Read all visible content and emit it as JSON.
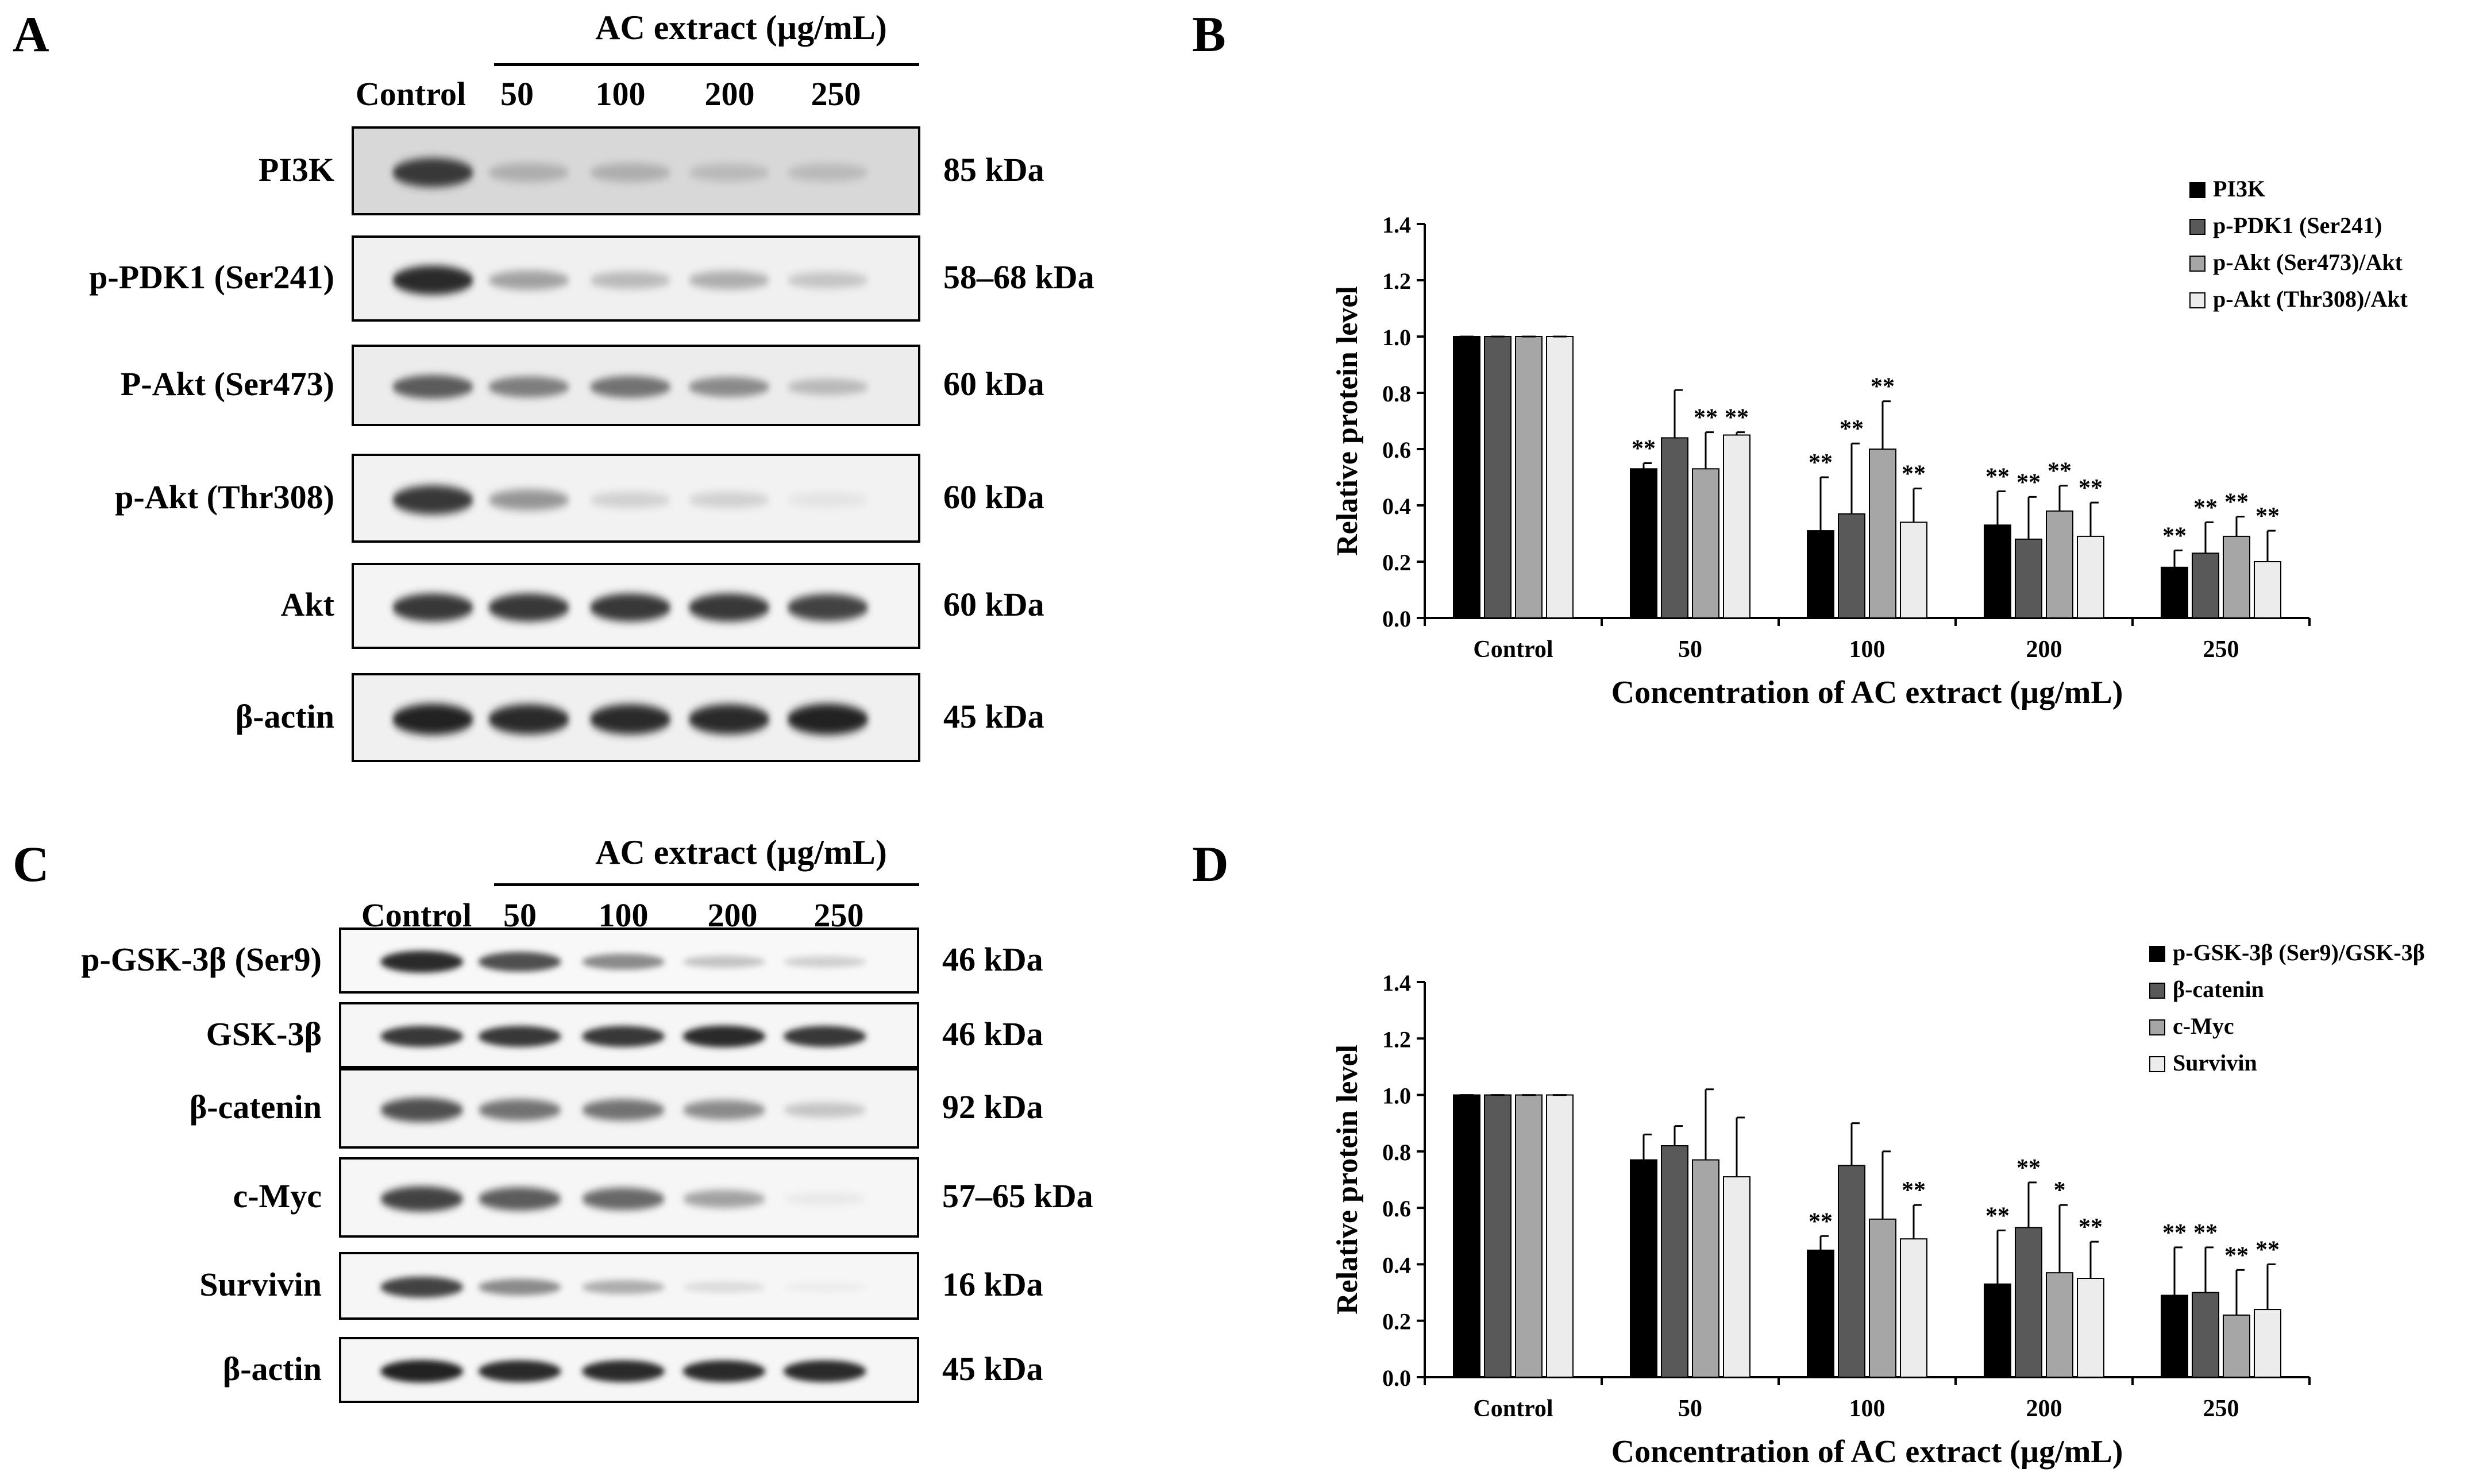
{
  "panel_letters": {
    "a": "A",
    "b": "B",
    "c": "C",
    "d": "D"
  },
  "blot_a": {
    "extract_title": "AC extract (µg/mL)",
    "lanes": [
      "Control",
      "50",
      "100",
      "200",
      "250"
    ],
    "rows": [
      {
        "label": "PI3K",
        "kda": "85 kDa",
        "band": [
          0.85,
          0.35,
          0.35,
          0.3,
          0.3
        ],
        "bg": "#d8d8d8"
      },
      {
        "label": "p-PDK1 (Ser241)",
        "kda": "58–68 kDa",
        "band": [
          0.9,
          0.4,
          0.3,
          0.35,
          0.25
        ],
        "bg": "#f0f0f0"
      },
      {
        "label": "P-Akt (Ser473)",
        "kda": "60 kDa",
        "band": [
          0.7,
          0.55,
          0.6,
          0.5,
          0.3
        ],
        "bg": "#ececec"
      },
      {
        "label": "p-Akt (Thr308)",
        "kda": "60 kDa",
        "band": [
          0.85,
          0.45,
          0.2,
          0.2,
          0.12
        ],
        "bg": "#f2f2f2"
      },
      {
        "label": "Akt",
        "kda": "60 kDa",
        "band": [
          0.85,
          0.85,
          0.85,
          0.85,
          0.8
        ],
        "bg": "#f4f4f4"
      },
      {
        "label": "β-actin",
        "kda": "45 kDa",
        "band": [
          0.95,
          0.9,
          0.9,
          0.9,
          0.95
        ],
        "bg": "#f0f0f0"
      }
    ]
  },
  "blot_c": {
    "extract_title": "AC extract (µg/mL)",
    "lanes": [
      "Control",
      "50",
      "100",
      "200",
      "250"
    ],
    "rows": [
      {
        "label": "p-GSK-3β (Ser9)",
        "kda": "46 kDa",
        "band": [
          0.9,
          0.75,
          0.5,
          0.25,
          0.2
        ],
        "bg": "#f8f8f8"
      },
      {
        "label": "GSK-3β",
        "kda": "46 kDa",
        "band": [
          0.85,
          0.85,
          0.85,
          0.9,
          0.85
        ],
        "bg": "#f6f6f6"
      },
      {
        "label": "β-catenin",
        "kda": "92 kDa",
        "band": [
          0.75,
          0.6,
          0.6,
          0.5,
          0.25
        ],
        "bg": "#f4f4f4"
      },
      {
        "label": "c-Myc",
        "kda": "57–65 kDa",
        "band": [
          0.8,
          0.7,
          0.65,
          0.4,
          0.1
        ],
        "bg": "#f6f6f6"
      },
      {
        "label": "Survivin",
        "kda": "16 kDa",
        "band": [
          0.8,
          0.5,
          0.35,
          0.15,
          0.08
        ],
        "bg": "#f6f6f6"
      },
      {
        "label": "β-actin",
        "kda": "45 kDa",
        "band": [
          0.95,
          0.9,
          0.9,
          0.9,
          0.9
        ],
        "bg": "#f6f6f6"
      }
    ]
  },
  "chart_data": [
    {
      "type": "bar",
      "panel": "B",
      "ylabel": "Relative protein level",
      "xlabel": "Concentration of AC extract  (µg/mL)",
      "categories": [
        "Control",
        "50",
        "100",
        "200",
        "250"
      ],
      "ylim": [
        0,
        1.4
      ],
      "yticks": [
        "0.0",
        "0.2",
        "0.4",
        "0.6",
        "0.8",
        "1.0",
        "1.2",
        "1.4"
      ],
      "legend_position": "top-right",
      "colors": [
        "#000000",
        "#595959",
        "#a6a6a6",
        "#ececec"
      ],
      "series": [
        {
          "name": "PI3K",
          "values": [
            1.0,
            0.53,
            0.31,
            0.33,
            0.18
          ],
          "errors": [
            0,
            0.02,
            0.19,
            0.12,
            0.06
          ],
          "sig": [
            "",
            "**",
            "**",
            "**",
            "**"
          ]
        },
        {
          "name": "p-PDK1 (Ser241)",
          "values": [
            1.0,
            0.64,
            0.37,
            0.28,
            0.23
          ],
          "errors": [
            0,
            0.17,
            0.25,
            0.15,
            0.11
          ],
          "sig": [
            "",
            "",
            "**",
            "**",
            "**"
          ]
        },
        {
          "name": "p-Akt (Ser473)/Akt",
          "values": [
            1.0,
            0.53,
            0.6,
            0.38,
            0.29
          ],
          "errors": [
            0,
            0.13,
            0.17,
            0.09,
            0.07
          ],
          "sig": [
            "",
            "**",
            "**",
            "**",
            "**"
          ]
        },
        {
          "name": "p-Akt (Thr308)/Akt",
          "values": [
            1.0,
            0.65,
            0.34,
            0.29,
            0.2
          ],
          "errors": [
            0,
            0.01,
            0.12,
            0.12,
            0.11
          ],
          "sig": [
            "",
            "**",
            "**",
            "**",
            "**"
          ]
        }
      ]
    },
    {
      "type": "bar",
      "panel": "D",
      "ylabel": "Relative protein level",
      "xlabel": "Concentration of AC extract  (µg/mL)",
      "categories": [
        "Control",
        "50",
        "100",
        "200",
        "250"
      ],
      "ylim": [
        0,
        1.4
      ],
      "yticks": [
        "0.0",
        "0.2",
        "0.4",
        "0.6",
        "0.8",
        "1.0",
        "1.2",
        "1.4"
      ],
      "legend_position": "top-right",
      "colors": [
        "#000000",
        "#595959",
        "#a6a6a6",
        "#ececec"
      ],
      "series": [
        {
          "name": "p-GSK-3β (Ser9)/GSK-3β",
          "values": [
            1.0,
            0.77,
            0.45,
            0.33,
            0.29
          ],
          "errors": [
            0,
            0.09,
            0.05,
            0.19,
            0.17
          ],
          "sig": [
            "",
            "",
            "**",
            "**",
            "**"
          ]
        },
        {
          "name": "β-catenin",
          "values": [
            1.0,
            0.82,
            0.75,
            0.53,
            0.3
          ],
          "errors": [
            0,
            0.07,
            0.15,
            0.16,
            0.16
          ],
          "sig": [
            "",
            "",
            "",
            "**",
            "**"
          ]
        },
        {
          "name": "c-Myc",
          "values": [
            1.0,
            0.77,
            0.56,
            0.37,
            0.22
          ],
          "errors": [
            0,
            0.25,
            0.24,
            0.24,
            0.16
          ],
          "sig": [
            "",
            "",
            "",
            "*",
            "**"
          ]
        },
        {
          "name": "Survivin",
          "values": [
            1.0,
            0.71,
            0.49,
            0.35,
            0.24
          ],
          "errors": [
            0,
            0.21,
            0.12,
            0.13,
            0.16
          ],
          "sig": [
            "",
            "",
            "**",
            "**",
            "**"
          ]
        }
      ]
    }
  ]
}
